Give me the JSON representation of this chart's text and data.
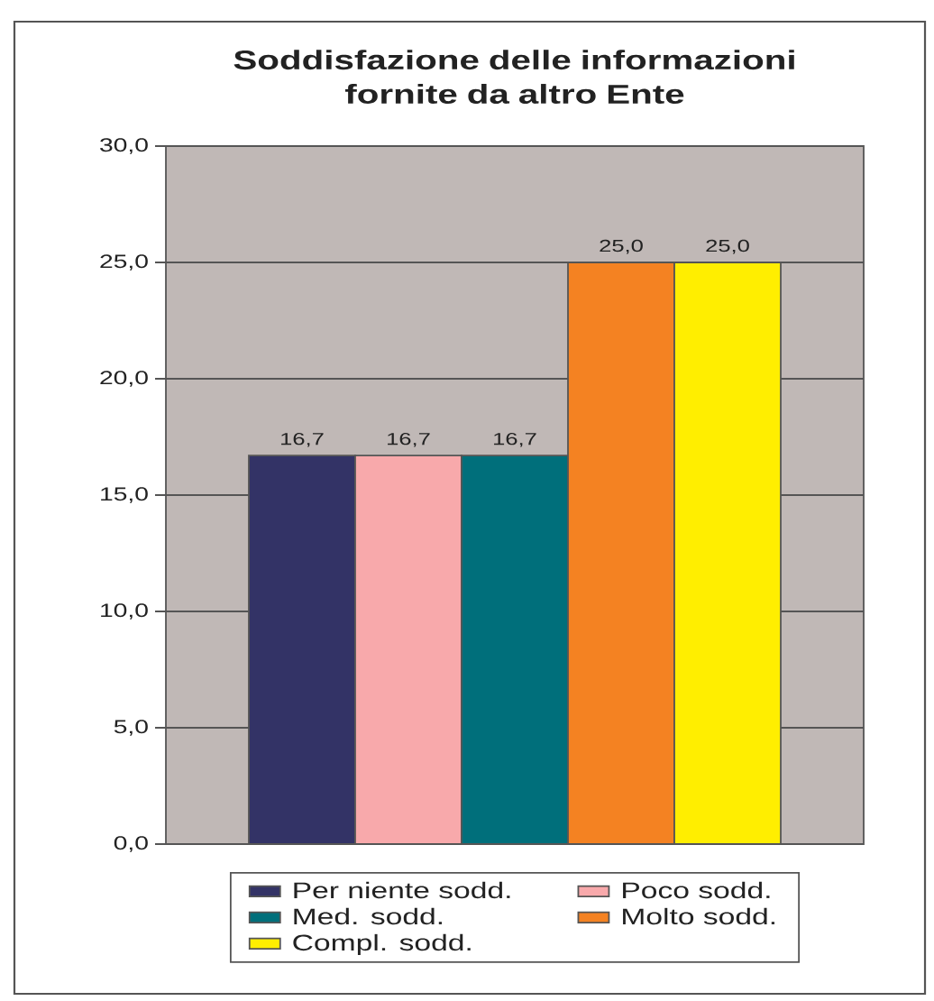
{
  "chart_data": {
    "type": "bar",
    "title": "Soddisfazione delle informazioni fornite da altro Ente",
    "categories": [
      null
    ],
    "series": [
      {
        "name": "Per niente sodd.",
        "color": "#333366",
        "values": [
          16.7
        ],
        "value_labels": [
          "16,7"
        ]
      },
      {
        "name": "Poco sodd.",
        "color": "#f8a9ab",
        "values": [
          16.7
        ],
        "value_labels": [
          "16,7"
        ]
      },
      {
        "name": "Med. sodd.",
        "color": "#006f7b",
        "values": [
          16.7
        ],
        "value_labels": [
          "16,7"
        ]
      },
      {
        "name": "Molto sodd.",
        "color": "#f48222",
        "values": [
          25.0
        ],
        "value_labels": [
          "25,0"
        ]
      },
      {
        "name": "Compl. sodd.",
        "color": "#ffee00",
        "values": [
          25.0
        ],
        "value_labels": [
          "25,0"
        ]
      }
    ],
    "ylim": [
      0,
      30
    ],
    "yticks": [
      {
        "value": 0,
        "label": "0,0"
      },
      {
        "value": 5,
        "label": "5,0"
      },
      {
        "value": 10,
        "label": "10,0"
      },
      {
        "value": 15,
        "label": "15,0"
      },
      {
        "value": 20,
        "label": "20,0"
      },
      {
        "value": 25,
        "label": "25,0"
      },
      {
        "value": 30,
        "label": "30,0"
      }
    ],
    "grid": "y",
    "legend": "bottom"
  }
}
